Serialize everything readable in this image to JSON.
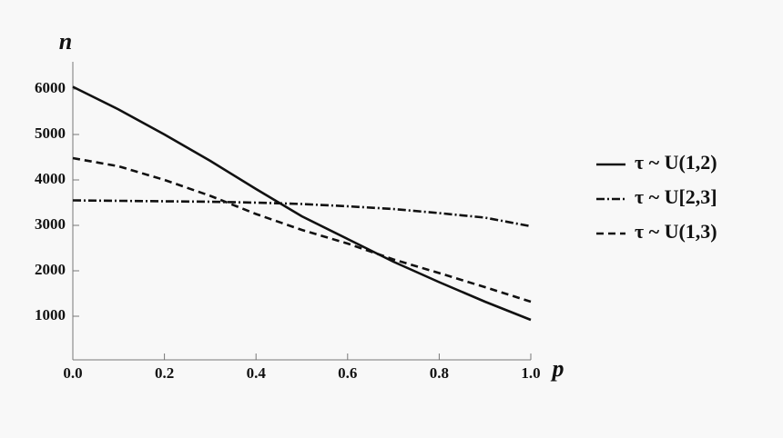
{
  "chart_data": {
    "type": "line",
    "x_label": "p",
    "y_label": "n",
    "x": [
      0,
      0.1,
      0.2,
      0.3,
      0.4,
      0.5,
      0.6,
      0.7,
      0.8,
      0.9,
      1.0
    ],
    "series": [
      {
        "name": "τ ~ U(1,2)",
        "color": "#111111",
        "dash": "none",
        "values": [
          6050,
          5550,
          5000,
          4420,
          3800,
          3200,
          2700,
          2200,
          1750,
          1320,
          920
        ]
      },
      {
        "name": "τ ~ U[2,3]",
        "color": "#111111",
        "dash": "9,3,2,3",
        "values": [
          3550,
          3540,
          3530,
          3520,
          3500,
          3470,
          3420,
          3360,
          3270,
          3170,
          2980
        ]
      },
      {
        "name": "τ ~ U(1,3)",
        "color": "#111111",
        "dash": "8,5",
        "values": [
          4480,
          4300,
          4000,
          3650,
          3250,
          2900,
          2600,
          2250,
          1950,
          1640,
          1320
        ]
      }
    ],
    "xlim": [
      0,
      1.0
    ],
    "ylim": [
      0,
      6600
    ],
    "xticks": [
      {
        "value": 0,
        "label": "0.0"
      },
      0.2,
      0.4,
      0.6,
      0.8,
      {
        "value": 1.0,
        "label": "1.0"
      }
    ],
    "yticks": [
      1000,
      2000,
      3000,
      4000,
      5000,
      6000
    ],
    "grid": false,
    "legend": "right"
  }
}
